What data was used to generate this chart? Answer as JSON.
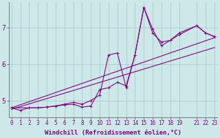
{
  "xlabel": "Windchill (Refroidissement éolien,°C)",
  "background_color": "#cce8e8",
  "line_color": "#800080",
  "grid_color": "#b0c8c8",
  "x_ticks": [
    0,
    1,
    2,
    3,
    4,
    5,
    6,
    7,
    8,
    9,
    10,
    11,
    12,
    13,
    14,
    15,
    16,
    17,
    18,
    19,
    21,
    22,
    23
  ],
  "y_ticks": [
    5,
    6,
    7
  ],
  "xlim": [
    -0.3,
    23.3
  ],
  "ylim": [
    4.55,
    7.7
  ],
  "series1_x": [
    0,
    1,
    2,
    3,
    4,
    5,
    6,
    7,
    8,
    9,
    10,
    11,
    12,
    13,
    14,
    15,
    16,
    17,
    18,
    19,
    21,
    22,
    23
  ],
  "series1_y": [
    4.8,
    4.73,
    4.8,
    4.8,
    4.82,
    4.85,
    4.88,
    4.9,
    4.82,
    4.85,
    5.3,
    5.35,
    5.5,
    5.4,
    6.25,
    7.55,
    6.95,
    6.5,
    6.65,
    6.8,
    7.05,
    6.85,
    6.75
  ],
  "series2_x": [
    0,
    2,
    3,
    4,
    5,
    6,
    7,
    8,
    9,
    10,
    11,
    12,
    13,
    14,
    15,
    16,
    17,
    18,
    19,
    21,
    22,
    23
  ],
  "series2_y": [
    4.8,
    4.8,
    4.8,
    4.82,
    4.85,
    4.9,
    4.95,
    4.9,
    5.0,
    5.15,
    6.25,
    6.3,
    5.35,
    6.25,
    7.55,
    6.85,
    6.6,
    6.65,
    6.85,
    7.05,
    6.85,
    6.75
  ],
  "trend1_x": [
    0,
    23
  ],
  "trend1_y": [
    4.8,
    6.72
  ],
  "trend2_x": [
    0,
    23
  ],
  "trend2_y": [
    4.76,
    6.45
  ],
  "marker": "+",
  "markersize": 3,
  "linewidth": 0.8,
  "tick_fontsize": 5.5,
  "label_fontsize": 6.5
}
